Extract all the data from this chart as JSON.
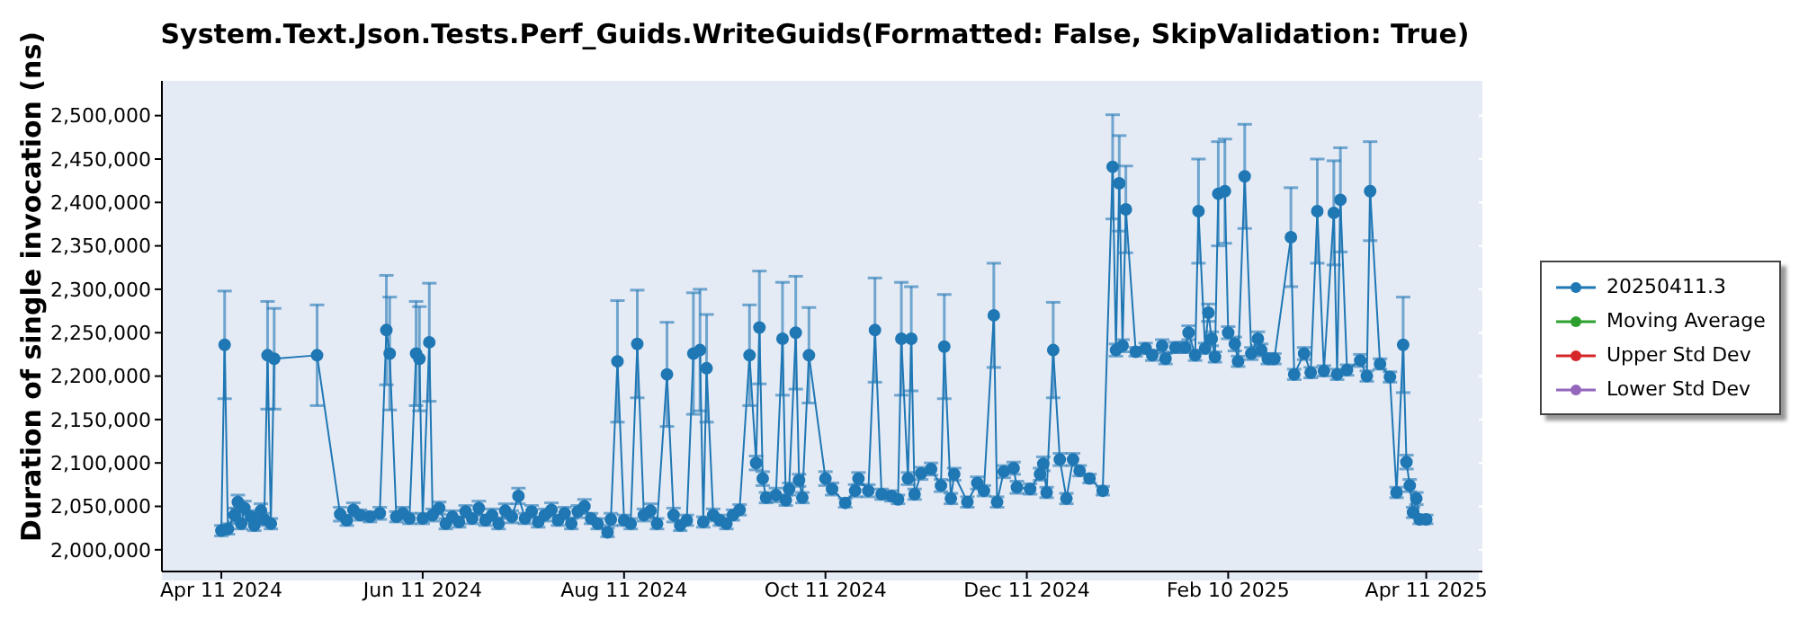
{
  "chart_data": {
    "type": "line",
    "title": "System.Text.Json.Tests.Perf_Guids.WriteGuids(Formatted: False, SkipValidation: True)",
    "ylabel": "Duration of single invocation (ns)",
    "xlim": [
      "2024-03-24",
      "2025-04-28"
    ],
    "xticks": [
      {
        "value": "2024-04-11",
        "label": "Apr 11 2024"
      },
      {
        "value": "2024-06-11",
        "label": "Jun 11 2024"
      },
      {
        "value": "2024-08-11",
        "label": "Aug 11 2024"
      },
      {
        "value": "2024-10-11",
        "label": "Oct 11 2024"
      },
      {
        "value": "2024-12-11",
        "label": "Dec 11 2024"
      },
      {
        "value": "2025-02-10",
        "label": "Feb 10 2025"
      },
      {
        "value": "2025-04-11",
        "label": "Apr 11 2025"
      }
    ],
    "ylim": [
      1975000,
      2540000
    ],
    "yticks": [
      {
        "value": 2000000,
        "label": "2,000,000"
      },
      {
        "value": 2050000,
        "label": "2,050,000"
      },
      {
        "value": 2100000,
        "label": "2,100,000"
      },
      {
        "value": 2150000,
        "label": "2,150,000"
      },
      {
        "value": 2200000,
        "label": "2,200,000"
      },
      {
        "value": 2250000,
        "label": "2,250,000"
      },
      {
        "value": 2300000,
        "label": "2,300,000"
      },
      {
        "value": 2350000,
        "label": "2,350,000"
      },
      {
        "value": 2400000,
        "label": "2,400,000"
      },
      {
        "value": 2450000,
        "label": "2,450,000"
      },
      {
        "value": 2500000,
        "label": "2,500,000"
      }
    ],
    "grid": true,
    "legend": "right",
    "marker": "circle",
    "line_style": "solid",
    "series": [
      {
        "name": "20250411.3",
        "color": "#1f77b4",
        "x": [
          "2024-04-11",
          "2024-04-12",
          "2024-04-13",
          "2024-04-15",
          "2024-04-16",
          "2024-04-17",
          "2024-04-18",
          "2024-04-20",
          "2024-04-21",
          "2024-04-23",
          "2024-04-24",
          "2024-04-25",
          "2024-04-26",
          "2024-04-27",
          "2024-05-10",
          "2024-05-17",
          "2024-05-19",
          "2024-05-21",
          "2024-05-23",
          "2024-05-26",
          "2024-05-29",
          "2024-05-31",
          "2024-06-01",
          "2024-06-03",
          "2024-06-05",
          "2024-06-07",
          "2024-06-09",
          "2024-06-10",
          "2024-06-11",
          "2024-06-13",
          "2024-06-14",
          "2024-06-16",
          "2024-06-18",
          "2024-06-20",
          "2024-06-22",
          "2024-06-24",
          "2024-06-26",
          "2024-06-28",
          "2024-06-30",
          "2024-07-02",
          "2024-07-04",
          "2024-07-06",
          "2024-07-08",
          "2024-07-10",
          "2024-07-12",
          "2024-07-14",
          "2024-07-16",
          "2024-07-18",
          "2024-07-20",
          "2024-07-22",
          "2024-07-24",
          "2024-07-26",
          "2024-07-28",
          "2024-07-30",
          "2024-08-01",
          "2024-08-03",
          "2024-08-06",
          "2024-08-07",
          "2024-08-09",
          "2024-08-11",
          "2024-08-13",
          "2024-08-15",
          "2024-08-17",
          "2024-08-19",
          "2024-08-21",
          "2024-08-24",
          "2024-08-26",
          "2024-08-28",
          "2024-08-30",
          "2024-09-01",
          "2024-09-03",
          "2024-09-04",
          "2024-09-05",
          "2024-09-07",
          "2024-09-09",
          "2024-09-11",
          "2024-09-13",
          "2024-09-15",
          "2024-09-18",
          "2024-09-20",
          "2024-09-21",
          "2024-09-22",
          "2024-09-23",
          "2024-09-26",
          "2024-09-28",
          "2024-09-29",
          "2024-09-30",
          "2024-10-02",
          "2024-10-03",
          "2024-10-04",
          "2024-10-06",
          "2024-10-11",
          "2024-10-13",
          "2024-10-17",
          "2024-10-20",
          "2024-10-21",
          "2024-10-24",
          "2024-10-26",
          "2024-10-28",
          "2024-10-31",
          "2024-11-02",
          "2024-11-03",
          "2024-11-05",
          "2024-11-06",
          "2024-11-07",
          "2024-11-09",
          "2024-11-12",
          "2024-11-15",
          "2024-11-16",
          "2024-11-18",
          "2024-11-19",
          "2024-11-23",
          "2024-11-26",
          "2024-11-28",
          "2024-12-01",
          "2024-12-02",
          "2024-12-04",
          "2024-12-07",
          "2024-12-08",
          "2024-12-12",
          "2024-12-15",
          "2024-12-16",
          "2024-12-17",
          "2024-12-19",
          "2024-12-21",
          "2024-12-23",
          "2024-12-25",
          "2024-12-27",
          "2024-12-30",
          "2025-01-03",
          "2025-01-06",
          "2025-01-07",
          "2025-01-08",
          "2025-01-09",
          "2025-01-10",
          "2025-01-13",
          "2025-01-16",
          "2025-01-18",
          "2025-01-21",
          "2025-01-22",
          "2025-01-25",
          "2025-01-28",
          "2025-01-29",
          "2025-01-31",
          "2025-02-01",
          "2025-02-03",
          "2025-02-04",
          "2025-02-05",
          "2025-02-06",
          "2025-02-07",
          "2025-02-09",
          "2025-02-10",
          "2025-02-12",
          "2025-02-13",
          "2025-02-15",
          "2025-02-17",
          "2025-02-19",
          "2025-02-20",
          "2025-02-22",
          "2025-02-24",
          "2025-03-01",
          "2025-03-02",
          "2025-03-05",
          "2025-03-07",
          "2025-03-09",
          "2025-03-11",
          "2025-03-14",
          "2025-03-15",
          "2025-03-16",
          "2025-03-18",
          "2025-03-22",
          "2025-03-24",
          "2025-03-25",
          "2025-03-28",
          "2025-03-31",
          "2025-04-02",
          "2025-04-04",
          "2025-04-05",
          "2025-04-06",
          "2025-04-07",
          "2025-04-08",
          "2025-04-09",
          "2025-04-11"
        ],
        "values": [
          2022000,
          2236000,
          2024000,
          2040000,
          2055000,
          2030000,
          2048000,
          2038000,
          2028000,
          2045000,
          2035000,
          2224000,
          2030000,
          2220000,
          2224000,
          2041000,
          2034000,
          2046000,
          2040000,
          2038000,
          2042000,
          2253000,
          2226000,
          2038000,
          2042000,
          2036000,
          2226000,
          2220000,
          2036000,
          2239000,
          2040000,
          2048000,
          2030000,
          2038000,
          2032000,
          2044000,
          2036000,
          2048000,
          2034000,
          2040000,
          2030000,
          2045000,
          2038000,
          2062000,
          2036000,
          2044000,
          2032000,
          2040000,
          2046000,
          2034000,
          2042000,
          2030000,
          2044000,
          2050000,
          2036000,
          2030000,
          2020000,
          2035000,
          2217000,
          2034000,
          2030000,
          2237000,
          2040000,
          2045000,
          2030000,
          2202000,
          2040000,
          2028000,
          2034000,
          2226000,
          2230000,
          2032000,
          2209000,
          2040000,
          2034000,
          2030000,
          2040000,
          2046000,
          2224000,
          2100000,
          2256000,
          2082000,
          2060000,
          2063000,
          2243000,
          2057000,
          2070000,
          2250000,
          2080000,
          2060000,
          2224000,
          2082000,
          2070000,
          2054000,
          2068000,
          2082000,
          2068000,
          2253000,
          2064000,
          2062000,
          2058000,
          2243000,
          2082000,
          2243000,
          2064000,
          2088000,
          2093000,
          2074000,
          2234000,
          2059000,
          2087000,
          2055000,
          2077000,
          2068000,
          2270000,
          2055000,
          2090000,
          2094000,
          2072000,
          2070000,
          2087000,
          2099000,
          2066000,
          2230000,
          2104000,
          2059000,
          2104000,
          2091000,
          2082000,
          2068000,
          2441000,
          2230000,
          2422000,
          2235000,
          2392000,
          2228000,
          2232000,
          2224000,
          2235000,
          2220000,
          2233000,
          2233000,
          2250000,
          2224000,
          2390000,
          2232000,
          2273000,
          2243000,
          2222000,
          2410000,
          2413000,
          2250000,
          2237000,
          2217000,
          2430000,
          2226000,
          2243000,
          2230000,
          2220000,
          2220000,
          2360000,
          2202000,
          2226000,
          2204000,
          2390000,
          2206000,
          2388000,
          2202000,
          2403000,
          2207000,
          2218000,
          2200000,
          2413000,
          2214000,
          2199000,
          2066000,
          2236000,
          2101000,
          2074000,
          2043000,
          2059000,
          2035000,
          2035000
        ],
        "errors": [
          6000,
          62000,
          6000,
          8000,
          8000,
          6000,
          8000,
          7000,
          6000,
          8000,
          7000,
          62000,
          6000,
          58000,
          58000,
          8000,
          6000,
          8000,
          6000,
          6000,
          7000,
          63000,
          65000,
          6000,
          7000,
          6000,
          60000,
          60000,
          6000,
          68000,
          7000,
          7000,
          6000,
          7000,
          6000,
          7000,
          6000,
          8000,
          6000,
          7000,
          6000,
          8000,
          7000,
          9000,
          6000,
          7000,
          6000,
          7000,
          8000,
          6000,
          7000,
          6000,
          7000,
          8000,
          6000,
          6000,
          5000,
          7000,
          70000,
          6000,
          6000,
          62000,
          7000,
          8000,
          6000,
          60000,
          8000,
          6000,
          6000,
          70000,
          70000,
          6000,
          62000,
          7000,
          6000,
          6000,
          6000,
          6000,
          58000,
          8000,
          65000,
          8000,
          6000,
          8000,
          65000,
          6000,
          7000,
          65000,
          7000,
          6000,
          55000,
          8000,
          7000,
          5000,
          7000,
          7000,
          7000,
          60000,
          6000,
          6000,
          5000,
          65000,
          7000,
          60000,
          6000,
          7000,
          7000,
          7000,
          60000,
          6000,
          7000,
          6000,
          7000,
          6000,
          60000,
          6000,
          7000,
          7000,
          7000,
          6000,
          7000,
          8000,
          6000,
          55000,
          7000,
          6000,
          7000,
          6000,
          5000,
          5000,
          60000,
          7000,
          55000,
          7000,
          50000,
          5000,
          6000,
          6000,
          7000,
          6000,
          6000,
          6000,
          8000,
          6000,
          60000,
          6000,
          10000,
          8000,
          6000,
          60000,
          60000,
          7000,
          8000,
          6000,
          60000,
          7000,
          8000,
          7000,
          6000,
          6000,
          57000,
          6000,
          7000,
          6000,
          60000,
          6000,
          60000,
          6000,
          60000,
          6000,
          7000,
          6000,
          57000,
          6000,
          6000,
          6000,
          55000,
          8000,
          7000,
          6000,
          7000,
          5000,
          5000
        ]
      },
      {
        "name": "Moving Average",
        "color": "#2ca02c"
      },
      {
        "name": "Upper Std Dev",
        "color": "#d62728"
      },
      {
        "name": "Lower Std Dev",
        "color": "#9467bd"
      }
    ]
  }
}
